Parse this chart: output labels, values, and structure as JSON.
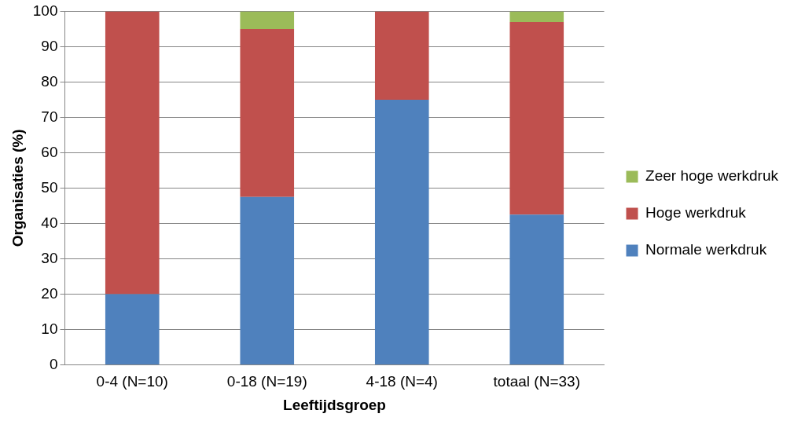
{
  "chart_data": {
    "type": "bar",
    "stacked": true,
    "xlabel": "Leeftijdsgroep",
    "ylabel": "Organisaties (%)",
    "categories": [
      "0-4 (N=10)",
      "0-18 (N=19)",
      "4-18 (N=4)",
      "totaal (N=33)"
    ],
    "series": [
      {
        "name": "Normale werkdruk",
        "color": "#4f81bd",
        "values": [
          20,
          47.5,
          75,
          42.5
        ]
      },
      {
        "name": "Hoge werkdruk",
        "color": "#c0504d",
        "values": [
          80,
          47.5,
          25,
          54.5
        ]
      },
      {
        "name": "Zeer hoge werkdruk",
        "color": "#9bbb59",
        "values": [
          0,
          5,
          0,
          3
        ]
      }
    ],
    "ylim": [
      0,
      100
    ],
    "yticks": [
      0,
      10,
      20,
      30,
      40,
      50,
      60,
      70,
      80,
      90,
      100
    ],
    "grid": "y",
    "legend": "right"
  }
}
